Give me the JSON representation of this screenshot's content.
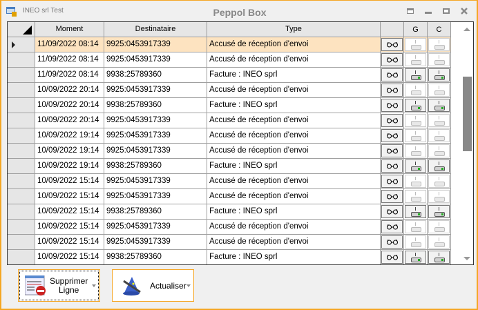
{
  "window": {
    "app_name": "INEO srl Test",
    "title": "Peppol Box"
  },
  "grid": {
    "columns": [
      "",
      "Moment",
      "Destinataire",
      "Type",
      "",
      "G",
      "C"
    ],
    "view_icon": "glasses-icon",
    "rows": [
      {
        "moment": "11/09/2022 08:14",
        "dest": "9925:0453917339",
        "type": "Accusé de réception d'envoi",
        "enabled": false,
        "selected": true
      },
      {
        "moment": "11/09/2022 08:14",
        "dest": "9925:0453917339",
        "type": "Accusé de réception d'envoi",
        "enabled": false
      },
      {
        "moment": "11/09/2022 08:14",
        "dest": "9938:25789360",
        "type": "Facture : INEO sprl",
        "enabled": true
      },
      {
        "moment": "10/09/2022 20:14",
        "dest": "9925:0453917339",
        "type": "Accusé de réception d'envoi",
        "enabled": false
      },
      {
        "moment": "10/09/2022 20:14",
        "dest": "9938:25789360",
        "type": "Facture : INEO sprl",
        "enabled": true
      },
      {
        "moment": "10/09/2022 20:14",
        "dest": "9925:0453917339",
        "type": "Accusé de réception d'envoi",
        "enabled": false
      },
      {
        "moment": "10/09/2022 19:14",
        "dest": "9925:0453917339",
        "type": "Accusé de réception d'envoi",
        "enabled": false
      },
      {
        "moment": "10/09/2022 19:14",
        "dest": "9925:0453917339",
        "type": "Accusé de réception d'envoi",
        "enabled": false
      },
      {
        "moment": "10/09/2022 19:14",
        "dest": "9938:25789360",
        "type": "Facture : INEO sprl",
        "enabled": true
      },
      {
        "moment": "10/09/2022 15:14",
        "dest": "9925:0453917339",
        "type": "Accusé de réception d'envoi",
        "enabled": false
      },
      {
        "moment": "10/09/2022 15:14",
        "dest": "9925:0453917339",
        "type": "Accusé de réception d'envoi",
        "enabled": false
      },
      {
        "moment": "10/09/2022 15:14",
        "dest": "9938:25789360",
        "type": "Facture : INEO sprl",
        "enabled": true
      },
      {
        "moment": "10/09/2022 15:14",
        "dest": "9925:0453917339",
        "type": "Accusé de réception d'envoi",
        "enabled": false
      },
      {
        "moment": "10/09/2022 15:14",
        "dest": "9925:0453917339",
        "type": "Accusé de réception d'envoi",
        "enabled": false
      },
      {
        "moment": "10/09/2022 15:14",
        "dest": "9938:25789360",
        "type": "Facture : INEO sprl",
        "enabled": true
      }
    ]
  },
  "buttons": {
    "delete_line_1": "Supprimer",
    "delete_line_2": "Ligne",
    "refresh": "Actualiser"
  },
  "colors": {
    "accent": "#f5a623",
    "selected_row": "#fde3c0"
  }
}
